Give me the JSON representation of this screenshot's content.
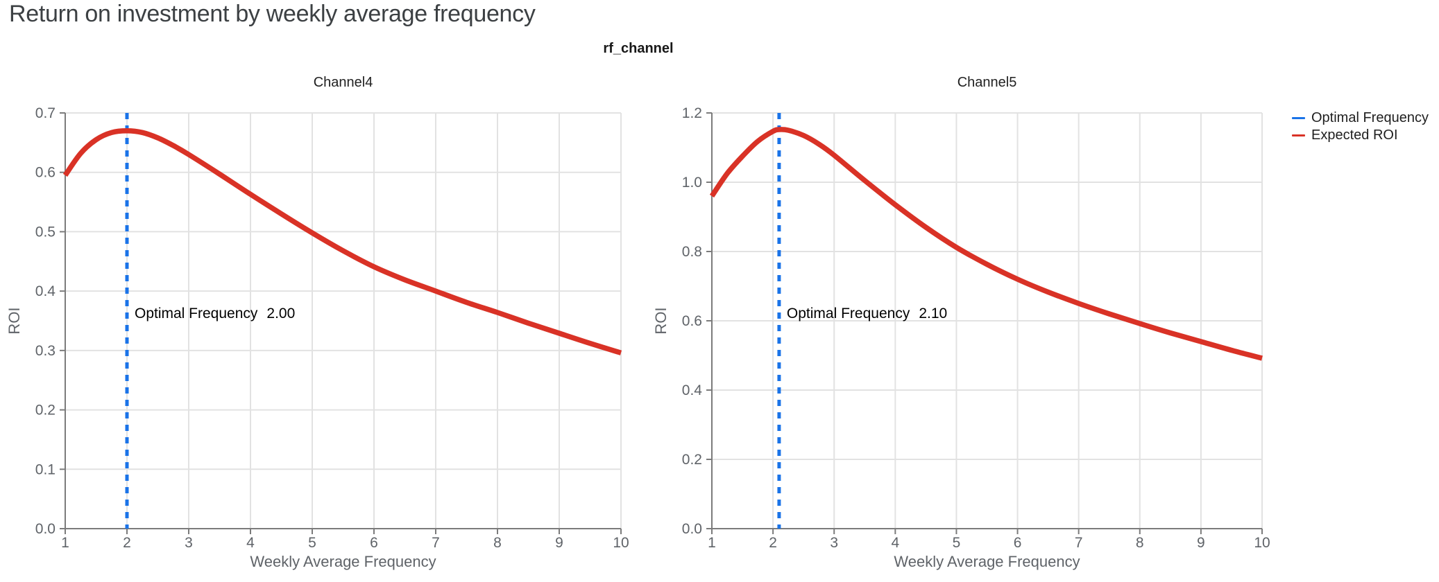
{
  "page": {
    "title": "Return on investment by weekly average frequency",
    "facet_title": "rf_channel"
  },
  "colors": {
    "optimal_frequency_blue": "#1a73e8",
    "expected_roi_red": "#d93226",
    "grid": "#e2e2e2",
    "axis_domain": "#7b7b7b",
    "axis_text": "#5f6368",
    "chart_title_text": "#212121",
    "annotation_text": "#000000",
    "page_title_text": "#3c4043"
  },
  "legend": {
    "items": [
      {
        "label": "Optimal Frequency",
        "color": "#1a73e8",
        "style": "line"
      },
      {
        "label": "Expected ROI",
        "color": "#d93226",
        "style": "line"
      }
    ]
  },
  "chart_data": [
    {
      "type": "line",
      "title": "Channel4",
      "xlabel": "Weekly Average Frequency",
      "ylabel": "ROI",
      "xlim": [
        1,
        10
      ],
      "ylim": [
        0.0,
        0.7
      ],
      "xticks": [
        1,
        2,
        3,
        4,
        5,
        6,
        7,
        8,
        9,
        10
      ],
      "xtick_labels": [
        "1",
        "2",
        "3",
        "4",
        "5",
        "6",
        "7",
        "8",
        "9",
        "10"
      ],
      "yticks": [
        0.0,
        0.1,
        0.2,
        0.3,
        0.4,
        0.5,
        0.6,
        0.7
      ],
      "ytick_labels": [
        "0.0",
        "0.1",
        "0.2",
        "0.3",
        "0.4",
        "0.5",
        "0.6",
        "0.7"
      ],
      "grid": true,
      "vline": {
        "name": "Optimal Frequency",
        "x": 2.0,
        "dashed": true
      },
      "annotation": {
        "label": "Optimal Frequency",
        "value": "2.00"
      },
      "series": [
        {
          "name": "Expected ROI",
          "x": [
            1,
            1.25,
            1.5,
            1.75,
            2,
            2.25,
            2.5,
            2.75,
            3,
            3.5,
            4,
            4.5,
            5,
            5.5,
            6,
            6.5,
            7,
            7.5,
            8,
            8.5,
            9,
            9.5,
            10
          ],
          "y": [
            0.595,
            0.632,
            0.655,
            0.667,
            0.67,
            0.667,
            0.658,
            0.645,
            0.63,
            0.597,
            0.563,
            0.53,
            0.498,
            0.468,
            0.441,
            0.419,
            0.4,
            0.381,
            0.364,
            0.346,
            0.329,
            0.312,
            0.296
          ]
        }
      ]
    },
    {
      "type": "line",
      "title": "Channel5",
      "xlabel": "Weekly Average Frequency",
      "ylabel": "ROI",
      "xlim": [
        1,
        10
      ],
      "ylim": [
        0.0,
        1.2
      ],
      "xticks": [
        1,
        2,
        3,
        4,
        5,
        6,
        7,
        8,
        9,
        10
      ],
      "xtick_labels": [
        "1",
        "2",
        "3",
        "4",
        "5",
        "6",
        "7",
        "8",
        "9",
        "10"
      ],
      "yticks": [
        0.0,
        0.2,
        0.4,
        0.6,
        0.8,
        1.0,
        1.2
      ],
      "ytick_labels": [
        "0.0",
        "0.2",
        "0.4",
        "0.6",
        "0.8",
        "1.0",
        "1.2"
      ],
      "grid": true,
      "vline": {
        "name": "Optimal Frequency",
        "x": 2.1,
        "dashed": true
      },
      "annotation": {
        "label": "Optimal Frequency",
        "value": "2.10"
      },
      "series": [
        {
          "name": "Expected ROI",
          "x": [
            1,
            1.25,
            1.5,
            1.75,
            2,
            2.1,
            2.25,
            2.5,
            2.75,
            3,
            3.5,
            4,
            4.5,
            5,
            5.5,
            6,
            6.5,
            7,
            7.5,
            8,
            8.5,
            9,
            9.5,
            10
          ],
          "y": [
            0.96,
            1.025,
            1.075,
            1.118,
            1.147,
            1.152,
            1.15,
            1.135,
            1.11,
            1.078,
            1.005,
            0.935,
            0.87,
            0.812,
            0.763,
            0.72,
            0.683,
            0.65,
            0.62,
            0.592,
            0.565,
            0.54,
            0.515,
            0.492
          ]
        }
      ]
    }
  ]
}
